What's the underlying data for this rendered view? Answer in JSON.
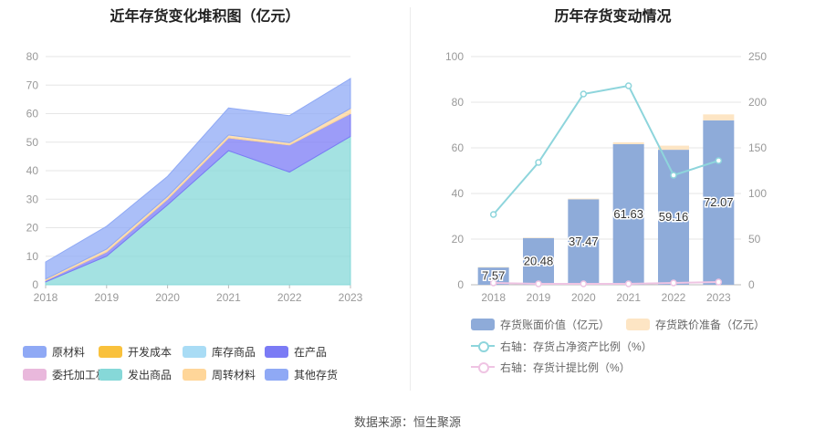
{
  "source": "数据来源：恒生聚源",
  "chart_data": [
    {
      "type": "area",
      "title": "近年存货变化堆积图（亿元）",
      "categories": [
        "2018",
        "2019",
        "2020",
        "2021",
        "2022",
        "2023"
      ],
      "ylim": [
        0,
        80
      ],
      "yticks": [
        0,
        10,
        20,
        30,
        40,
        50,
        60,
        70,
        80
      ],
      "series": [
        {
          "name": "原材料",
          "color": "#8fa9f5",
          "values": [
            0,
            0,
            0,
            0,
            0,
            0
          ]
        },
        {
          "name": "开发成本",
          "color": "#f9c13c",
          "values": [
            0,
            0,
            0,
            0,
            0,
            0
          ]
        },
        {
          "name": "库存商品",
          "color": "#a9dcf5",
          "values": [
            0,
            0,
            0,
            0,
            0,
            0
          ]
        },
        {
          "name": "在产品",
          "color": "#7b7bf5",
          "values": [
            0.5,
            1.5,
            2,
            4.5,
            9.5,
            8
          ]
        },
        {
          "name": "委托加工材料",
          "color": "#e9b8dc",
          "values": [
            0,
            0,
            0,
            0,
            0,
            0
          ]
        },
        {
          "name": "发出商品",
          "color": "#86d8d8",
          "values": [
            1,
            10,
            28,
            47,
            39.5,
            52
          ]
        },
        {
          "name": "周转材料",
          "color": "#ffd699",
          "values": [
            0.5,
            1,
            1,
            1,
            0.8,
            1.8
          ]
        },
        {
          "name": "其他存货",
          "color": "#8fa9f5",
          "values": [
            6,
            8,
            7,
            9.5,
            9.5,
            10.5
          ]
        }
      ],
      "legend_rows": [
        [
          "原材料",
          "开发成本",
          "库存商品",
          "在产品"
        ],
        [
          "委托加工材料",
          "发出商品",
          "周转材料",
          "其他存货"
        ]
      ]
    },
    {
      "type": "bar+line",
      "title": "历年存货变动情况",
      "categories": [
        "2018",
        "2019",
        "2020",
        "2021",
        "2022",
        "2023"
      ],
      "ylim_left": [
        0,
        100
      ],
      "yticks_left": [
        0,
        20,
        40,
        60,
        80,
        100
      ],
      "ylim_right": [
        0,
        250
      ],
      "yticks_right": [
        0,
        50,
        100,
        150,
        200,
        250
      ],
      "bars": [
        {
          "name": "存货账面价值（亿元）",
          "color": "#8eabd9",
          "values": [
            7.57,
            20.48,
            37.47,
            61.63,
            59.16,
            72.07
          ]
        },
        {
          "name": "存货跌价准备（亿元）",
          "color": "#fde5c4",
          "values": [
            0.2,
            0.2,
            0.3,
            0.8,
            1.8,
            2.6
          ]
        }
      ],
      "bar_labels": [
        "7.57",
        "20.48",
        "37.47",
        "61.63",
        "59.16",
        "72.07"
      ],
      "lines": [
        {
          "name": "右轴：存货占净资产比例（%）",
          "color": "#8ed5dc",
          "values": [
            77,
            134,
            209,
            218,
            120,
            136
          ]
        },
        {
          "name": "右轴：存货计提比例（%）",
          "color": "#efc4e3",
          "values": [
            2,
            1,
            1,
            1,
            2,
            3
          ]
        }
      ]
    }
  ]
}
